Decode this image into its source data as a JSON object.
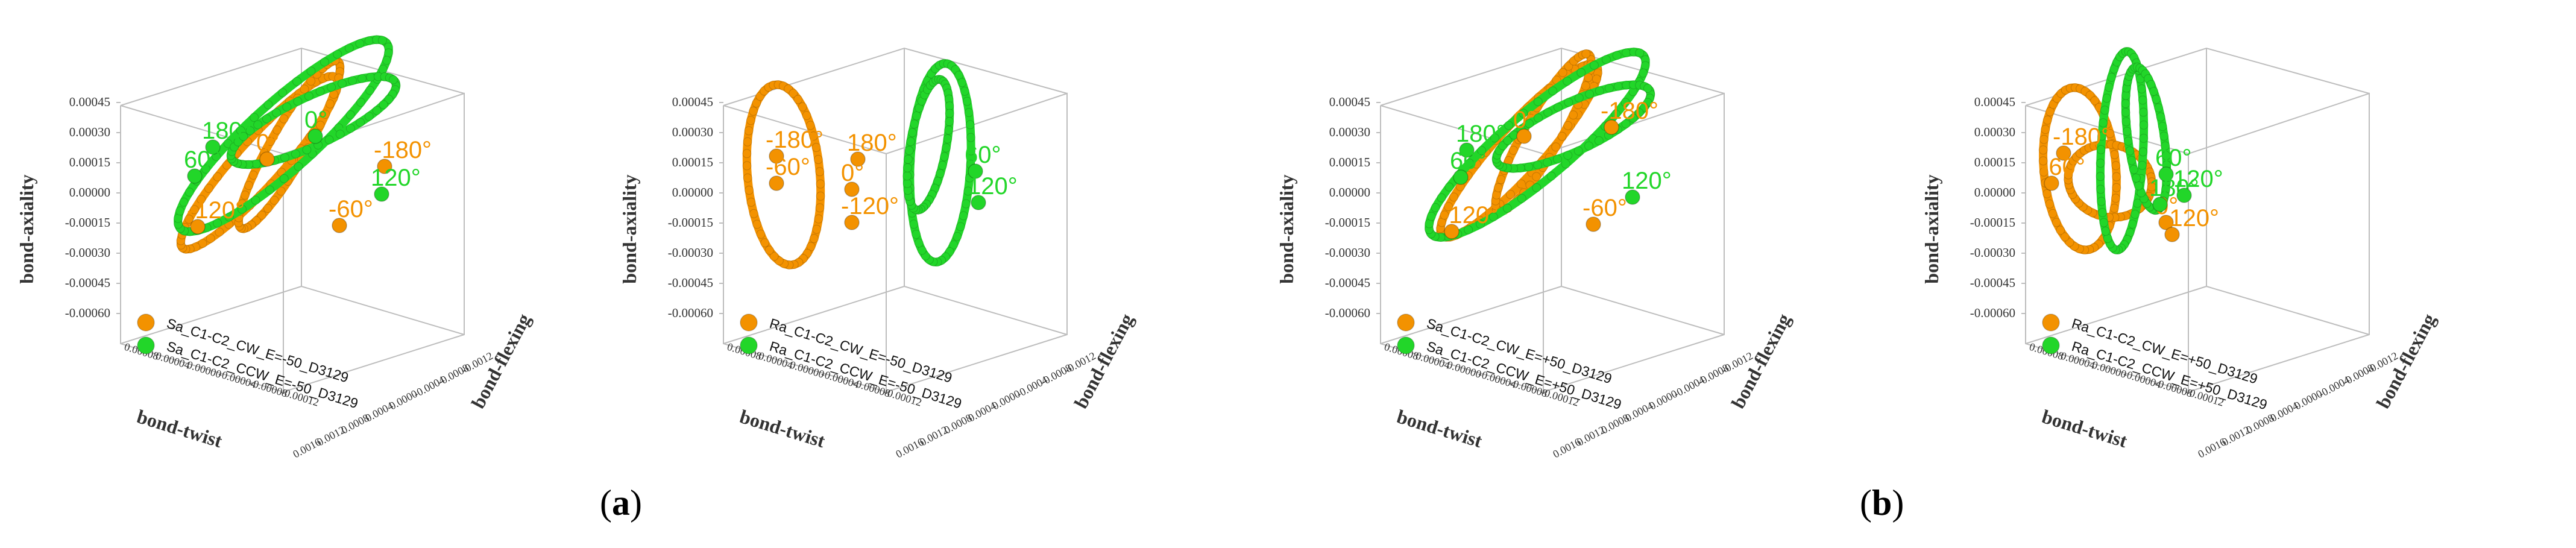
{
  "colors": {
    "cw": "#f39200",
    "ccw": "#22d629",
    "frame": "#bdbdbd",
    "text": "#333333"
  },
  "panel_labels": [
    {
      "open": "(",
      "letter": "a",
      "close": ")"
    },
    {
      "open": "(",
      "letter": "b",
      "close": ")"
    }
  ],
  "chart_data": [
    {
      "type": "scatter3d",
      "axes": {
        "x": {
          "label": "bond-twist",
          "ticks": [
            "0.00008",
            "0.00004",
            "0.00000",
            "-0.00004",
            "-0.00008",
            "-0.00012"
          ]
        },
        "y": {
          "label": "bond-flexing",
          "ticks": [
            "0.0016",
            "0.0012",
            "0.0008",
            "0.0004",
            "0.0000",
            "-0.0004",
            "-0.0008",
            "-0.0012"
          ]
        },
        "z": {
          "label": "bond-axiality",
          "ticks": [
            "0.00045",
            "0.00030",
            "0.00015",
            "0.00000",
            "-0.00015",
            "-0.00030",
            "-0.00045",
            "-0.00060"
          ]
        }
      },
      "legend": [
        "Sa_C1-C2_CW_E=-50_D3129",
        "Sa_C1-C2_CCW_E=-50_D3129"
      ],
      "annotations": {
        "cw": [
          "0°",
          "-180°",
          "-120°",
          "-60°"
        ],
        "ccw": [
          "180°",
          "60°",
          "0°",
          "120°"
        ]
      }
    },
    {
      "type": "scatter3d",
      "axes": {
        "x": {
          "label": "bond-twist",
          "ticks": [
            "0.00008",
            "0.00004",
            "0.00000",
            "-0.00004",
            "-0.00008",
            "-0.00012"
          ]
        },
        "y": {
          "label": "bond-flexing",
          "ticks": [
            "0.0016",
            "0.0012",
            "0.0008",
            "0.0004",
            "0.0000",
            "-0.0004",
            "-0.0008",
            "-0.0012"
          ]
        },
        "z": {
          "label": "bond-axiality",
          "ticks": [
            "0.00045",
            "0.00030",
            "0.00015",
            "0.00000",
            "-0.00015",
            "-0.00030",
            "-0.00045",
            "-0.00060"
          ]
        }
      },
      "legend": [
        "Ra_C1-C2_CW_E=-50_D3129",
        "Ra_C1-C2_CCW_E=-50_D3129"
      ],
      "annotations": {
        "cw": [
          "-180°",
          "-60°",
          "-120°",
          "180°",
          "0°"
        ],
        "ccw": [
          "60°",
          "120°"
        ]
      }
    },
    {
      "type": "scatter3d",
      "axes": {
        "x": {
          "label": "bond-twist",
          "ticks": [
            "0.00008",
            "0.00004",
            "0.00000",
            "-0.00004",
            "-0.00008",
            "-0.00012"
          ]
        },
        "y": {
          "label": "bond-flexing",
          "ticks": [
            "0.0016",
            "0.0012",
            "0.0008",
            "0.0004",
            "0.0000",
            "-0.0004",
            "-0.0008",
            "-0.0012"
          ]
        },
        "z": {
          "label": "bond-axiality",
          "ticks": [
            "0.00045",
            "0.00030",
            "0.00015",
            "0.00000",
            "-0.00015",
            "-0.00030",
            "-0.00045",
            "-0.00060"
          ]
        }
      },
      "legend": [
        "Sa_C1-C2_CW_E=+50_D3129",
        "Sa_C1-C2_CCW_E=+50_D3129"
      ],
      "annotations": {
        "cw": [
          "0°",
          "-180°",
          "-120°",
          "-60°"
        ],
        "ccw": [
          "180°",
          "60°",
          "120°"
        ]
      }
    },
    {
      "type": "scatter3d",
      "axes": {
        "x": {
          "label": "bond-twist",
          "ticks": [
            "0.00008",
            "0.00004",
            "0.00000",
            "-0.00004",
            "-0.00008",
            "-0.00012"
          ]
        },
        "y": {
          "label": "bond-flexing",
          "ticks": [
            "0.0016",
            "0.0012",
            "0.0008",
            "0.0004",
            "0.0000",
            "-0.0004",
            "-0.0008",
            "-0.0012"
          ]
        },
        "z": {
          "label": "bond-axiality",
          "ticks": [
            "0.00045",
            "0.00030",
            "0.00015",
            "0.00000",
            "-0.00015",
            "-0.00030",
            "-0.00045",
            "-0.00060"
          ]
        }
      },
      "legend": [
        "Ra_C1-C2_CW_E=+50_D3129",
        "Ra_C1-C2_CCW_E=+50_D3129"
      ],
      "annotations": {
        "cw": [
          "-180°",
          "-60°",
          "0°",
          "-120°"
        ],
        "ccw": [
          "60°",
          "180°",
          "120°"
        ]
      }
    }
  ]
}
